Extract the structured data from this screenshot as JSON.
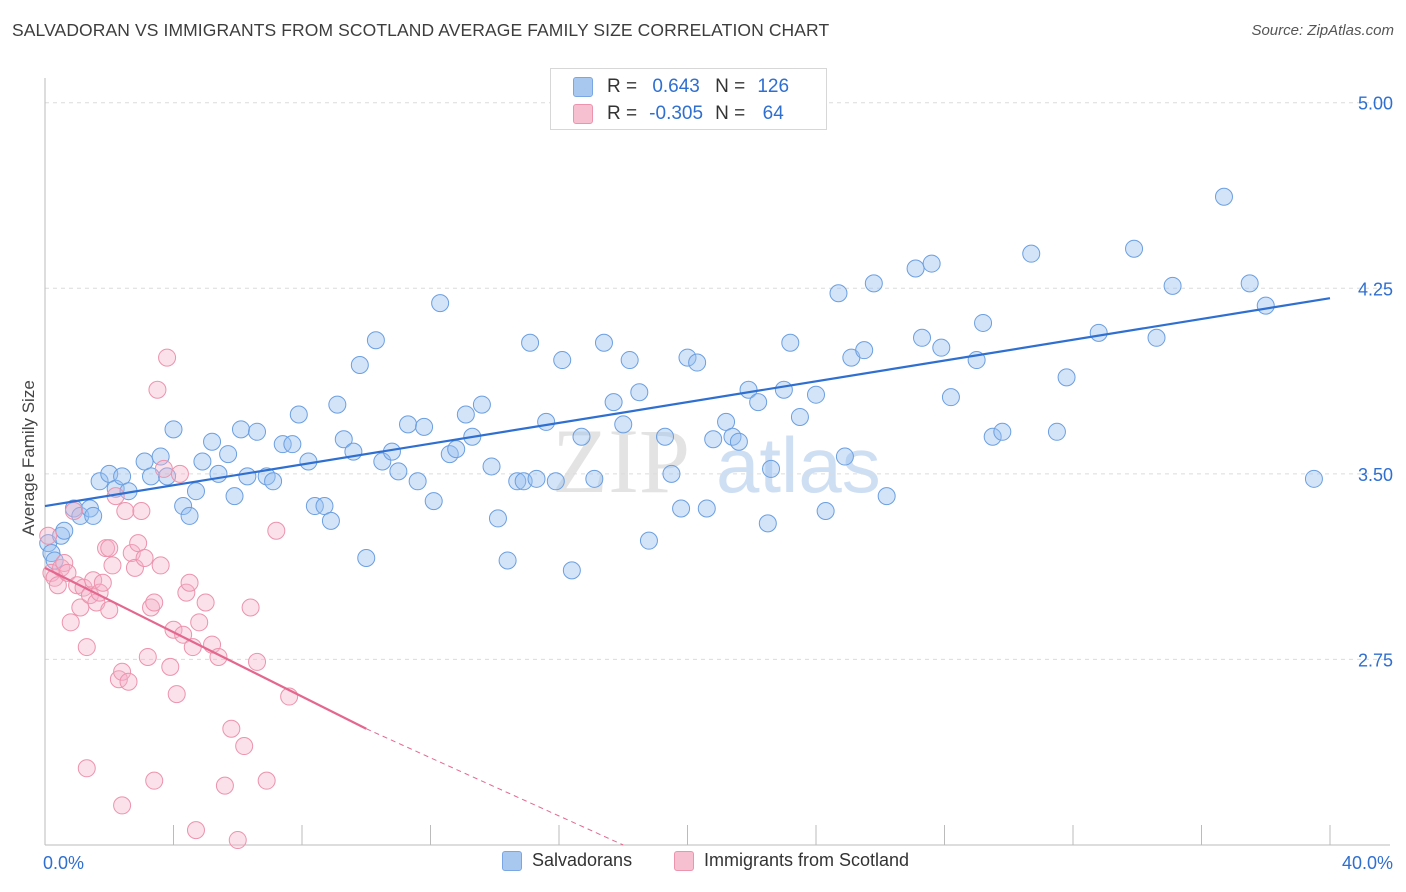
{
  "title": "SALVADORAN VS IMMIGRANTS FROM SCOTLAND AVERAGE FAMILY SIZE CORRELATION CHART",
  "source": "Source: ZipAtlas.com",
  "watermark": {
    "zip": "ZIP",
    "atlas": "atlas"
  },
  "stats": {
    "r_label": "R =",
    "n_label": "N =",
    "rows": [
      {
        "r": "0.643",
        "n": "126",
        "color": "#a9c8f0",
        "border": "#7aa7e3"
      },
      {
        "r": "-0.305",
        "n": "64",
        "color": "#f7c0d0",
        "border": "#ec93ad"
      }
    ]
  },
  "legend": {
    "items": [
      {
        "label": "Salvadorans",
        "color": "#a9c8f0",
        "border": "#7aa7e3"
      },
      {
        "label": "Immigrants from Scotland",
        "color": "#f7c0d0",
        "border": "#ec93ad"
      }
    ]
  },
  "chart_data": {
    "type": "scatter",
    "title": "SALVADORAN VS IMMIGRANTS FROM SCOTLAND AVERAGE FAMILY SIZE CORRELATION CHART",
    "xlabel": "",
    "ylabel": "Average Family Size",
    "xlim": [
      0,
      40
    ],
    "ylim": [
      2.0,
      5.1
    ],
    "x_tick_labels": [
      "0.0%",
      "40.0%"
    ],
    "y_ticks": [
      2.75,
      3.5,
      4.25,
      5.0
    ],
    "y_tick_labels": [
      "2.75",
      "3.50",
      "4.25",
      "5.00"
    ],
    "grid": true,
    "legend_position": "bottom",
    "series": [
      {
        "name": "Salvadorans",
        "color": "#6b9fe0",
        "trend": {
          "x": [
            0,
            40
          ],
          "y": [
            3.37,
            4.21
          ],
          "color": "#2f6fd0"
        },
        "points": [
          [
            0.1,
            3.22
          ],
          [
            0.2,
            3.18
          ],
          [
            0.3,
            3.15
          ],
          [
            0.5,
            3.25
          ],
          [
            0.6,
            3.27
          ],
          [
            0.9,
            3.36
          ],
          [
            1.1,
            3.33
          ],
          [
            1.4,
            3.36
          ],
          [
            1.5,
            3.33
          ],
          [
            1.7,
            3.47
          ],
          [
            2.0,
            3.5
          ],
          [
            2.2,
            3.44
          ],
          [
            2.4,
            3.49
          ],
          [
            2.6,
            3.43
          ],
          [
            3.1,
            3.55
          ],
          [
            3.3,
            3.49
          ],
          [
            3.6,
            3.57
          ],
          [
            3.8,
            3.49
          ],
          [
            4.0,
            3.68
          ],
          [
            4.3,
            3.37
          ],
          [
            4.5,
            3.33
          ],
          [
            4.7,
            3.43
          ],
          [
            4.9,
            3.55
          ],
          [
            5.2,
            3.63
          ],
          [
            5.4,
            3.5
          ],
          [
            5.7,
            3.58
          ],
          [
            5.9,
            3.41
          ],
          [
            6.1,
            3.68
          ],
          [
            6.3,
            3.49
          ],
          [
            6.6,
            3.67
          ],
          [
            6.9,
            3.49
          ],
          [
            7.1,
            3.47
          ],
          [
            7.4,
            3.62
          ],
          [
            7.7,
            3.62
          ],
          [
            7.9,
            3.74
          ],
          [
            8.2,
            3.55
          ],
          [
            8.4,
            3.37
          ],
          [
            8.7,
            3.37
          ],
          [
            8.9,
            3.31
          ],
          [
            9.1,
            3.78
          ],
          [
            9.3,
            3.64
          ],
          [
            9.6,
            3.59
          ],
          [
            9.8,
            3.94
          ],
          [
            10.0,
            3.16
          ],
          [
            10.3,
            4.04
          ],
          [
            10.5,
            3.55
          ],
          [
            10.8,
            3.59
          ],
          [
            11.0,
            3.51
          ],
          [
            11.3,
            3.7
          ],
          [
            11.6,
            3.47
          ],
          [
            11.8,
            3.69
          ],
          [
            12.1,
            3.39
          ],
          [
            12.3,
            4.19
          ],
          [
            12.6,
            3.58
          ],
          [
            12.8,
            3.6
          ],
          [
            13.1,
            3.74
          ],
          [
            13.3,
            3.65
          ],
          [
            13.6,
            3.78
          ],
          [
            13.9,
            3.53
          ],
          [
            14.1,
            3.32
          ],
          [
            14.4,
            3.15
          ],
          [
            14.7,
            3.47
          ],
          [
            14.9,
            3.47
          ],
          [
            15.1,
            4.03
          ],
          [
            15.3,
            3.48
          ],
          [
            15.6,
            3.71
          ],
          [
            15.9,
            3.47
          ],
          [
            16.1,
            3.96
          ],
          [
            16.4,
            3.11
          ],
          [
            16.7,
            3.65
          ],
          [
            17.1,
            3.48
          ],
          [
            17.4,
            4.03
          ],
          [
            17.7,
            3.79
          ],
          [
            18.0,
            3.7
          ],
          [
            18.2,
            3.96
          ],
          [
            18.5,
            3.83
          ],
          [
            18.8,
            3.23
          ],
          [
            19.3,
            3.65
          ],
          [
            19.5,
            3.5
          ],
          [
            19.8,
            3.36
          ],
          [
            20.0,
            3.97
          ],
          [
            20.3,
            3.95
          ],
          [
            20.6,
            3.36
          ],
          [
            20.8,
            3.64
          ],
          [
            21.2,
            3.71
          ],
          [
            21.4,
            3.65
          ],
          [
            21.6,
            3.63
          ],
          [
            21.9,
            3.84
          ],
          [
            22.2,
            3.79
          ],
          [
            22.5,
            3.3
          ],
          [
            22.6,
            3.52
          ],
          [
            23.0,
            3.84
          ],
          [
            23.2,
            4.03
          ],
          [
            23.5,
            3.73
          ],
          [
            24.0,
            3.82
          ],
          [
            24.3,
            3.35
          ],
          [
            24.7,
            4.23
          ],
          [
            24.9,
            3.57
          ],
          [
            25.1,
            3.97
          ],
          [
            25.5,
            4.0
          ],
          [
            25.8,
            4.27
          ],
          [
            26.2,
            3.41
          ],
          [
            27.1,
            4.33
          ],
          [
            27.3,
            4.05
          ],
          [
            27.6,
            4.35
          ],
          [
            27.9,
            4.01
          ],
          [
            28.2,
            3.81
          ],
          [
            29.0,
            3.96
          ],
          [
            29.2,
            4.11
          ],
          [
            29.5,
            3.65
          ],
          [
            29.8,
            3.67
          ],
          [
            30.7,
            4.39
          ],
          [
            31.5,
            3.67
          ],
          [
            31.8,
            3.89
          ],
          [
            32.8,
            4.07
          ],
          [
            33.9,
            4.41
          ],
          [
            34.6,
            4.05
          ],
          [
            35.1,
            4.26
          ],
          [
            36.7,
            4.62
          ],
          [
            37.5,
            4.27
          ],
          [
            38.0,
            4.18
          ],
          [
            39.5,
            3.48
          ]
        ]
      },
      {
        "name": "Immigrants from Scotland",
        "color": "#ec93ad",
        "trend": {
          "x": [
            0,
            10.0
          ],
          "y": [
            3.12,
            2.47
          ],
          "color": "#e4678f",
          "dash_to": [
            18.0,
            2.0
          ]
        },
        "points": [
          [
            0.1,
            3.25
          ],
          [
            0.2,
            3.1
          ],
          [
            0.3,
            3.08
          ],
          [
            0.4,
            3.05
          ],
          [
            0.5,
            3.12
          ],
          [
            0.6,
            3.14
          ],
          [
            0.7,
            3.1
          ],
          [
            0.8,
            2.9
          ],
          [
            0.9,
            3.35
          ],
          [
            1.0,
            3.05
          ],
          [
            1.1,
            2.96
          ],
          [
            1.2,
            3.04
          ],
          [
            1.3,
            2.8
          ],
          [
            1.4,
            3.01
          ],
          [
            1.5,
            3.07
          ],
          [
            1.6,
            2.98
          ],
          [
            1.7,
            3.02
          ],
          [
            1.8,
            3.06
          ],
          [
            1.9,
            3.2
          ],
          [
            2.0,
            2.95
          ],
          [
            2.1,
            3.13
          ],
          [
            2.2,
            3.41
          ],
          [
            2.3,
            2.67
          ],
          [
            2.4,
            2.7
          ],
          [
            2.5,
            3.35
          ],
          [
            2.6,
            2.66
          ],
          [
            2.7,
            3.18
          ],
          [
            2.8,
            3.12
          ],
          [
            2.9,
            3.22
          ],
          [
            3.0,
            3.35
          ],
          [
            3.1,
            3.16
          ],
          [
            3.2,
            2.76
          ],
          [
            3.3,
            2.96
          ],
          [
            3.4,
            2.98
          ],
          [
            3.5,
            3.84
          ],
          [
            3.6,
            3.13
          ],
          [
            3.7,
            3.52
          ],
          [
            3.8,
            3.97
          ],
          [
            3.9,
            2.72
          ],
          [
            4.0,
            2.87
          ],
          [
            4.1,
            2.61
          ],
          [
            4.2,
            3.5
          ],
          [
            4.3,
            2.85
          ],
          [
            4.4,
            3.02
          ],
          [
            4.5,
            3.06
          ],
          [
            4.6,
            2.8
          ],
          [
            4.7,
            2.06
          ],
          [
            4.8,
            2.9
          ],
          [
            5.0,
            2.98
          ],
          [
            5.2,
            2.81
          ],
          [
            5.4,
            2.76
          ],
          [
            5.6,
            2.24
          ],
          [
            5.8,
            2.47
          ],
          [
            6.0,
            2.02
          ],
          [
            6.2,
            2.4
          ],
          [
            6.4,
            2.96
          ],
          [
            6.6,
            2.74
          ],
          [
            6.9,
            2.26
          ],
          [
            7.2,
            3.27
          ],
          [
            7.6,
            2.6
          ],
          [
            1.3,
            2.31
          ],
          [
            2.4,
            2.16
          ],
          [
            3.4,
            2.26
          ],
          [
            2.0,
            3.2
          ]
        ]
      }
    ]
  }
}
